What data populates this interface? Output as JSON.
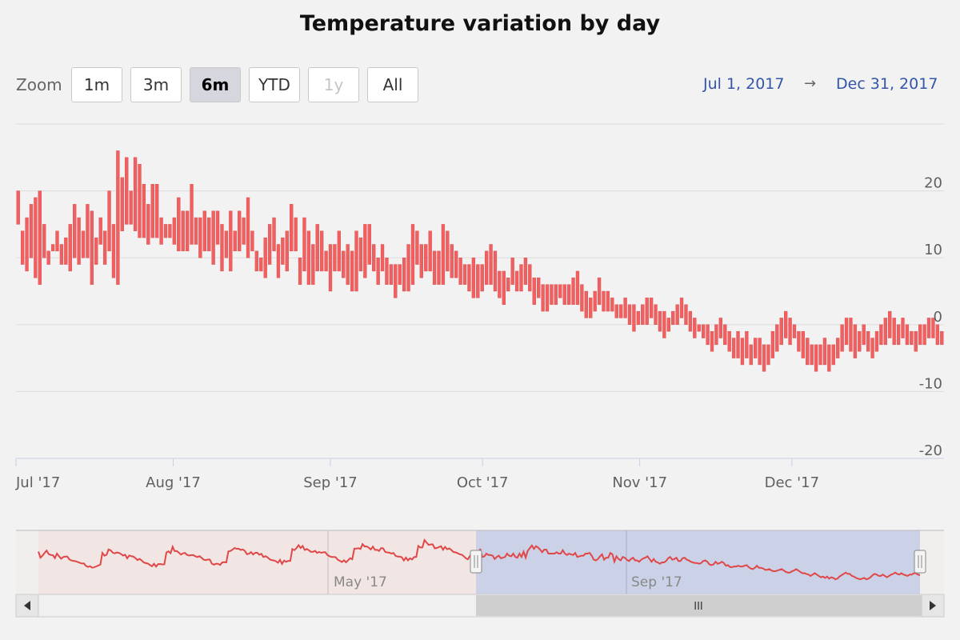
{
  "title": "Temperature variation by day",
  "zoom": {
    "label": "Zoom",
    "buttons": [
      {
        "label": "1m",
        "state": "normal"
      },
      {
        "label": "3m",
        "state": "normal"
      },
      {
        "label": "6m",
        "state": "active"
      },
      {
        "label": "YTD",
        "state": "normal"
      },
      {
        "label": "1y",
        "state": "disabled"
      },
      {
        "label": "All",
        "state": "normal"
      }
    ]
  },
  "range": {
    "from": "Jul 1, 2017",
    "arrow": "→",
    "to": "Dec 31, 2017"
  },
  "navigator": {
    "ticks": [
      "May '17",
      "Sep '17"
    ],
    "scrollbar_grip": "III"
  },
  "colors": {
    "bar": "#f06060",
    "bar_stroke": "#d84848",
    "line": "#e04848",
    "nav_mask": "#c7cde6",
    "range_text": "#3355aa"
  },
  "chart_data": {
    "type": "columnrange",
    "title": "Temperature variation by day",
    "xlabel": "",
    "ylabel": "",
    "x_ticks": [
      "Jul '17",
      "Aug '17",
      "Sep '17",
      "Oct '17",
      "Nov '17",
      "Dec '17"
    ],
    "y_ticks": [
      20,
      10,
      0,
      -10,
      -20
    ],
    "ylim": [
      -20,
      30
    ],
    "x_range": [
      "2017-07-01",
      "2017-12-31"
    ],
    "grid": true,
    "points": [
      [
        15.0,
        20.0
      ],
      [
        9.0,
        14.0
      ],
      [
        8.0,
        16.0
      ],
      [
        10.0,
        18.0
      ],
      [
        7.0,
        19.0
      ],
      [
        6.0,
        20.0
      ],
      [
        10.0,
        15.0
      ],
      [
        9.0,
        11.0
      ],
      [
        11.0,
        12.0
      ],
      [
        11.0,
        14.0
      ],
      [
        9.0,
        12.0
      ],
      [
        9.0,
        13.0
      ],
      [
        8.0,
        15.0
      ],
      [
        10.0,
        18.0
      ],
      [
        9.0,
        16.0
      ],
      [
        10.0,
        14.0
      ],
      [
        10.0,
        18.0
      ],
      [
        6.0,
        17.0
      ],
      [
        9.0,
        13.0
      ],
      [
        12.0,
        16.0
      ],
      [
        9.0,
        14.0
      ],
      [
        11.0,
        20.0
      ],
      [
        7.0,
        15.0
      ],
      [
        6.0,
        26.0
      ],
      [
        14.0,
        22.0
      ],
      [
        15.0,
        25.0
      ],
      [
        15.0,
        20.0
      ],
      [
        14.0,
        25.0
      ],
      [
        13.0,
        24.0
      ],
      [
        13.0,
        21.0
      ],
      [
        12.0,
        18.0
      ],
      [
        13.0,
        21.0
      ],
      [
        13.0,
        21.0
      ],
      [
        12.0,
        16.0
      ],
      [
        13.0,
        15.0
      ],
      [
        13.0,
        15.0
      ],
      [
        12.0,
        16.0
      ],
      [
        11.0,
        19.0
      ],
      [
        11.0,
        17.0
      ],
      [
        11.0,
        17.0
      ],
      [
        12.0,
        21.0
      ],
      [
        12.0,
        16.0
      ],
      [
        10.0,
        16.0
      ],
      [
        11.0,
        17.0
      ],
      [
        11.0,
        16.0
      ],
      [
        9.0,
        17.0
      ],
      [
        12.0,
        17.0
      ],
      [
        8.0,
        15.0
      ],
      [
        10.0,
        14.0
      ],
      [
        8.0,
        17.0
      ],
      [
        11.0,
        14.0
      ],
      [
        11.0,
        17.0
      ],
      [
        12.0,
        16.0
      ],
      [
        10.0,
        19.0
      ],
      [
        11.0,
        14.0
      ],
      [
        8.0,
        11.0
      ],
      [
        8.0,
        10.0
      ],
      [
        7.0,
        13.0
      ],
      [
        9.0,
        15.0
      ],
      [
        11.0,
        16.0
      ],
      [
        7.0,
        12.0
      ],
      [
        9.0,
        13.0
      ],
      [
        8.0,
        14.0
      ],
      [
        11.0,
        18.0
      ],
      [
        11.0,
        16.0
      ],
      [
        6.0,
        10.0
      ],
      [
        8.0,
        16.0
      ],
      [
        6.0,
        14.0
      ],
      [
        6.0,
        12.0
      ],
      [
        8.0,
        15.0
      ],
      [
        8.0,
        14.0
      ],
      [
        8.0,
        11.0
      ],
      [
        5.0,
        12.0
      ],
      [
        8.0,
        12.0
      ],
      [
        8.0,
        14.0
      ],
      [
        7.0,
        11.0
      ],
      [
        6.0,
        12.0
      ],
      [
        5.0,
        11.0
      ],
      [
        5.0,
        14.0
      ],
      [
        8.0,
        13.0
      ],
      [
        7.0,
        15.0
      ],
      [
        9.0,
        15.0
      ],
      [
        8.0,
        12.0
      ],
      [
        6.0,
        10.0
      ],
      [
        8.0,
        12.0
      ],
      [
        6.0,
        10.0
      ],
      [
        6.0,
        9.0
      ],
      [
        4.0,
        9.0
      ],
      [
        6.0,
        9.0
      ],
      [
        5.0,
        10.0
      ],
      [
        5.0,
        12.0
      ],
      [
        6.0,
        15.0
      ],
      [
        9.0,
        14.0
      ],
      [
        7.0,
        12.0
      ],
      [
        8.0,
        12.0
      ],
      [
        8.0,
        14.0
      ],
      [
        6.0,
        11.0
      ],
      [
        6.0,
        11.0
      ],
      [
        6.0,
        15.0
      ],
      [
        8.0,
        14.0
      ],
      [
        7.0,
        12.0
      ],
      [
        7.0,
        11.0
      ],
      [
        6.0,
        10.0
      ],
      [
        6.0,
        9.0
      ],
      [
        5.0,
        9.0
      ],
      [
        4.0,
        10.0
      ],
      [
        4.0,
        9.0
      ],
      [
        5.0,
        9.0
      ],
      [
        6.0,
        11.0
      ],
      [
        6.0,
        12.0
      ],
      [
        5.0,
        11.0
      ],
      [
        4.0,
        8.0
      ],
      [
        3.0,
        8.0
      ],
      [
        5.0,
        7.0
      ],
      [
        6.0,
        10.0
      ],
      [
        5.0,
        8.0
      ],
      [
        5.0,
        9.0
      ],
      [
        6.0,
        10.0
      ],
      [
        5.0,
        9.0
      ],
      [
        3.0,
        7.0
      ],
      [
        4.0,
        7.0
      ],
      [
        2.0,
        6.0
      ],
      [
        2.0,
        6.0
      ],
      [
        3.0,
        6.0
      ],
      [
        3.0,
        6.0
      ],
      [
        4.0,
        6.0
      ],
      [
        3.0,
        6.0
      ],
      [
        3.0,
        6.0
      ],
      [
        3.0,
        7.0
      ],
      [
        3.0,
        8.0
      ],
      [
        2.0,
        6.0
      ],
      [
        1.0,
        5.0
      ],
      [
        1.0,
        4.0
      ],
      [
        2.0,
        5.0
      ],
      [
        3.0,
        7.0
      ],
      [
        2.0,
        5.0
      ],
      [
        2.0,
        5.0
      ],
      [
        2.0,
        4.0
      ],
      [
        1.0,
        3.0
      ],
      [
        1.0,
        3.0
      ],
      [
        1.0,
        4.0
      ],
      [
        0.0,
        3.0
      ],
      [
        -1.0,
        3.0
      ],
      [
        0.0,
        2.0
      ],
      [
        0.0,
        3.0
      ],
      [
        0.0,
        4.0
      ],
      [
        1.0,
        4.0
      ],
      [
        0.0,
        3.0
      ],
      [
        -1.0,
        2.0
      ],
      [
        -2.0,
        2.0
      ],
      [
        -1.0,
        1.0
      ],
      [
        0.0,
        2.0
      ],
      [
        0.0,
        3.0
      ],
      [
        1.0,
        4.0
      ],
      [
        0.0,
        3.0
      ],
      [
        -1.0,
        2.0
      ],
      [
        -2.0,
        1.0
      ],
      [
        -1.0,
        0.0
      ],
      [
        -2.0,
        0.0
      ],
      [
        -3.0,
        0.0
      ],
      [
        -4.0,
        -1.0
      ],
      [
        -3.0,
        0.0
      ],
      [
        -2.0,
        1.0
      ],
      [
        -3.0,
        0.0
      ],
      [
        -4.0,
        -1.0
      ],
      [
        -5.0,
        -2.0
      ],
      [
        -5.0,
        -1.0
      ],
      [
        -6.0,
        -2.0
      ],
      [
        -5.0,
        -1.0
      ],
      [
        -6.0,
        -3.0
      ],
      [
        -5.0,
        -2.0
      ],
      [
        -6.0,
        -2.0
      ],
      [
        -7.0,
        -3.0
      ],
      [
        -6.0,
        -3.0
      ],
      [
        -5.0,
        -1.0
      ],
      [
        -4.0,
        0.0
      ],
      [
        -3.0,
        1.0
      ],
      [
        -2.0,
        2.0
      ],
      [
        -3.0,
        1.0
      ],
      [
        -2.0,
        0.0
      ],
      [
        -4.0,
        -1.0
      ],
      [
        -5.0,
        -1.0
      ],
      [
        -6.0,
        -2.0
      ],
      [
        -6.0,
        -3.0
      ],
      [
        -7.0,
        -3.0
      ],
      [
        -6.0,
        -3.0
      ],
      [
        -6.0,
        -2.0
      ],
      [
        -7.0,
        -3.0
      ],
      [
        -6.0,
        -3.0
      ],
      [
        -5.0,
        -2.0
      ],
      [
        -4.0,
        0.0
      ],
      [
        -3.0,
        1.0
      ],
      [
        -4.0,
        1.0
      ],
      [
        -5.0,
        0.0
      ],
      [
        -4.0,
        -1.0
      ],
      [
        -3.0,
        0.0
      ],
      [
        -4.0,
        -1.0
      ],
      [
        -5.0,
        -2.0
      ],
      [
        -4.0,
        -1.0
      ],
      [
        -3.0,
        0.0
      ],
      [
        -3.0,
        1.0
      ],
      [
        -2.0,
        2.0
      ],
      [
        -3.0,
        1.0
      ],
      [
        -3.0,
        0.0
      ],
      [
        -2.0,
        1.0
      ],
      [
        -3.0,
        0.0
      ],
      [
        -3.0,
        -1.0
      ],
      [
        -4.0,
        -1.0
      ],
      [
        -3.0,
        0.0
      ],
      [
        -3.0,
        0.0
      ],
      [
        -2.0,
        1.0
      ],
      [
        -2.0,
        1.0
      ],
      [
        -3.0,
        0.0
      ],
      [
        -3.0,
        -1.0
      ]
    ]
  }
}
